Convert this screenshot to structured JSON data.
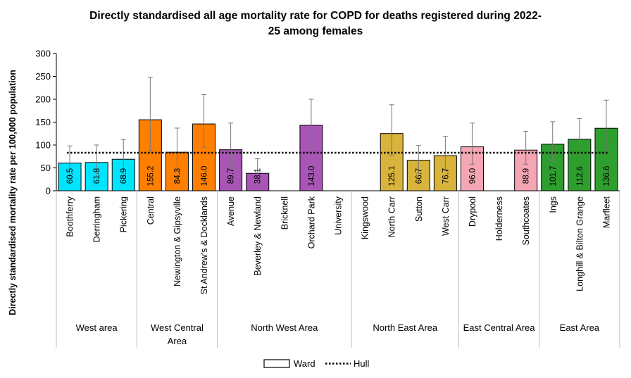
{
  "chart_data": {
    "type": "bar",
    "title_lines": [
      "Directly standardised all age mortality rate for COPD for deaths registered during 2022-",
      "25 among females"
    ],
    "ylabel": "Directly standardised mortality rate per 100,000 population",
    "ylim": [
      0,
      300
    ],
    "yticks": [
      "0",
      "50",
      "100",
      "150",
      "200",
      "250",
      "300"
    ],
    "grid": false,
    "legend_position": "bottom",
    "legend": {
      "ward_label": "Ward",
      "hull_label": "Hull"
    },
    "hull_value": 83,
    "groups": [
      {
        "name": "West area",
        "name_lines": [
          "West area"
        ],
        "color": "#00E5FF",
        "wards": [
          {
            "name": "Boothferry",
            "value": 60.5,
            "value_label": "60.5",
            "ci": [
              30,
              98
            ]
          },
          {
            "name": "Derringham",
            "value": 61.8,
            "value_label": "61.8",
            "ci": [
              30,
              100
            ]
          },
          {
            "name": "Pickering",
            "value": 68.9,
            "value_label": "68.9",
            "ci": [
              32,
              112
            ]
          }
        ]
      },
      {
        "name": "West Central Area",
        "name_lines": [
          "West Central",
          "Area"
        ],
        "color": "#FF7F00",
        "wards": [
          {
            "name": "Central",
            "value": 155.2,
            "value_label": "155.2",
            "ci": [
              88,
              248
            ]
          },
          {
            "name": "Newington & Gipsyville",
            "value": 84.3,
            "value_label": "84.3",
            "ci": [
              42,
              137
            ]
          },
          {
            "name": "St Andrew's & Docklands",
            "value": 146.0,
            "value_label": "146.0",
            "ci": [
              95,
              210
            ]
          }
        ]
      },
      {
        "name": "North West Area",
        "name_lines": [
          "North West Area"
        ],
        "color": "#A855B5",
        "wards": [
          {
            "name": "Avenue",
            "value": 89.7,
            "value_label": "89.7",
            "ci": [
              45,
              148
            ]
          },
          {
            "name": "Beverley & Newland",
            "value": 38.1,
            "value_label": "38.1",
            "ci": [
              18,
              70
            ]
          },
          {
            "name": "Bricknell",
            "value": null,
            "value_label": "",
            "ci": null
          },
          {
            "name": "Orchard Park",
            "value": 143.0,
            "value_label": "143.0",
            "ci": [
              96,
              200
            ]
          },
          {
            "name": "University",
            "value": null,
            "value_label": "",
            "ci": null
          }
        ]
      },
      {
        "name": "North East Area",
        "name_lines": [
          "North East Area"
        ],
        "color": "#D8B43C",
        "wards": [
          {
            "name": "Kingswood",
            "value": null,
            "value_label": "",
            "ci": null
          },
          {
            "name": "North Carr",
            "value": 125.1,
            "value_label": "125.1",
            "ci": [
              78,
              188
            ]
          },
          {
            "name": "Sutton",
            "value": 66.7,
            "value_label": "66.7",
            "ci": [
              38,
              99
            ]
          },
          {
            "name": "West Carr",
            "value": 76.7,
            "value_label": "76.7",
            "ci": [
              46,
              119
            ]
          }
        ]
      },
      {
        "name": "East Central Area",
        "name_lines": [
          "East Central Area"
        ],
        "color": "#F4A6B4",
        "wards": [
          {
            "name": "Drypool",
            "value": 96.0,
            "value_label": "96.0",
            "ci": [
              58,
              148
            ]
          },
          {
            "name": "Holderness",
            "value": null,
            "value_label": "",
            "ci": null
          },
          {
            "name": "Southcoates",
            "value": 88.9,
            "value_label": "88.9",
            "ci": [
              58,
              130
            ]
          }
        ]
      },
      {
        "name": "East Area",
        "name_lines": [
          "East Area"
        ],
        "color": "#2E9E2E",
        "wards": [
          {
            "name": "Ings",
            "value": 101.7,
            "value_label": "101.7",
            "ci": [
              65,
              151
            ]
          },
          {
            "name": "Longhill & Bilton Grange",
            "value": 112.6,
            "value_label": "112.6",
            "ci": [
              76,
              158
            ]
          },
          {
            "name": "Marfleet",
            "value": 136.6,
            "value_label": "136.6",
            "ci": [
              90,
              198
            ]
          }
        ]
      }
    ]
  }
}
